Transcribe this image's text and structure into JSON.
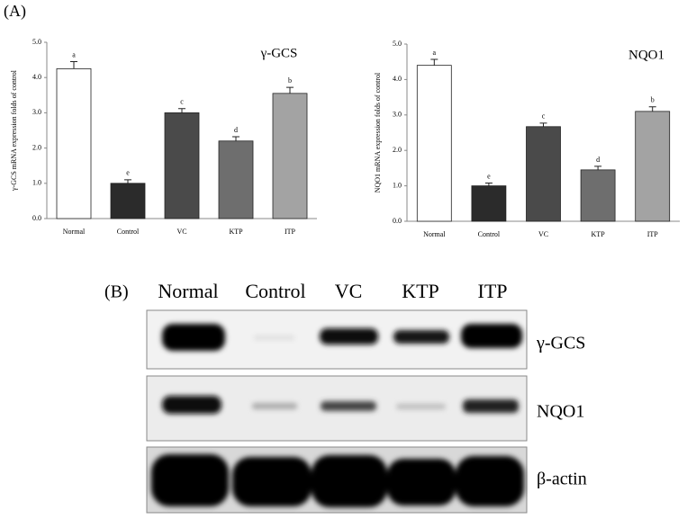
{
  "panel_a_label": "(A)",
  "chart_data": [
    {
      "type": "bar",
      "title": "γ-GCS",
      "y_label": "γ-GCS mRNA expression folds of control",
      "categories": [
        "Normal",
        "Control",
        "VC",
        "KTP",
        "ITP"
      ],
      "values": [
        4.25,
        1.0,
        3.0,
        2.2,
        3.55
      ],
      "errors": [
        0.2,
        0.1,
        0.12,
        0.12,
        0.17
      ],
      "annotations": [
        "a",
        "e",
        "c",
        "d",
        "b"
      ],
      "colors": [
        "#ffffff",
        "#2b2b2b",
        "#4a4a4a",
        "#6e6e6e",
        "#a3a3a3"
      ],
      "ylim": [
        0,
        5
      ],
      "yticks": [
        {
          "value": 0,
          "label": "0.0"
        },
        {
          "value": 1,
          "label": "1.0"
        },
        {
          "value": 2,
          "label": "2.0"
        },
        {
          "value": 3,
          "label": "3.0"
        },
        {
          "value": 4,
          "label": "4.0"
        },
        {
          "value": 5,
          "label": "5.0"
        }
      ]
    },
    {
      "type": "bar",
      "title": "NQO1",
      "y_label": "NQO1 mRNA expression folds of control",
      "categories": [
        "Normal",
        "Control",
        "VC",
        "KTP",
        "ITP"
      ],
      "values": [
        4.4,
        1.0,
        2.67,
        1.45,
        3.1
      ],
      "errors": [
        0.17,
        0.08,
        0.1,
        0.1,
        0.13
      ],
      "annotations": [
        "a",
        "e",
        "c",
        "d",
        "b"
      ],
      "colors": [
        "#ffffff",
        "#2b2b2b",
        "#4a4a4a",
        "#6e6e6e",
        "#a3a3a3"
      ],
      "ylim": [
        0,
        5
      ],
      "yticks": [
        {
          "value": 0,
          "label": "0.0"
        },
        {
          "value": 1,
          "label": "1.0"
        },
        {
          "value": 2,
          "label": "2.0"
        },
        {
          "value": 3,
          "label": "3.0"
        },
        {
          "value": 4,
          "label": "4.0"
        },
        {
          "value": 5,
          "label": "5.0"
        }
      ]
    }
  ],
  "blot": {
    "panel_label": "(B)",
    "lanes": [
      "Normal",
      "Control",
      "VC",
      "KTP",
      "ITP"
    ],
    "rows": [
      "γ-GCS",
      "NQO1",
      "β-actin"
    ]
  }
}
